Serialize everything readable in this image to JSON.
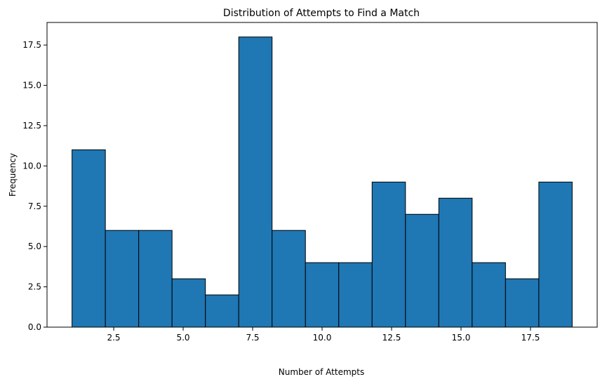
{
  "chart_data": {
    "type": "bar",
    "title": "Distribution of Attempts to Find a Match",
    "xlabel": "Number of Attempts",
    "ylabel": "Frequency",
    "xlim": [
      0.1,
      19.9
    ],
    "ylim": [
      0,
      18.9
    ],
    "x_ticks": [
      "2.5",
      "5.0",
      "7.5",
      "10.0",
      "12.5",
      "15.0",
      "17.5"
    ],
    "y_ticks": [
      "0.0",
      "2.5",
      "5.0",
      "7.5",
      "10.0",
      "12.5",
      "15.0",
      "17.5"
    ],
    "bins": [
      {
        "start": 1.0,
        "end": 2.2,
        "value": 11
      },
      {
        "start": 2.2,
        "end": 3.4,
        "value": 6
      },
      {
        "start": 3.4,
        "end": 4.6,
        "value": 6
      },
      {
        "start": 4.6,
        "end": 5.8,
        "value": 3
      },
      {
        "start": 5.8,
        "end": 7.0,
        "value": 2
      },
      {
        "start": 7.0,
        "end": 8.2,
        "value": 18
      },
      {
        "start": 8.2,
        "end": 9.4,
        "value": 6
      },
      {
        "start": 9.4,
        "end": 10.6,
        "value": 4
      },
      {
        "start": 10.6,
        "end": 11.8,
        "value": 4
      },
      {
        "start": 11.8,
        "end": 13.0,
        "value": 9
      },
      {
        "start": 13.0,
        "end": 14.2,
        "value": 7
      },
      {
        "start": 14.2,
        "end": 15.4,
        "value": 8
      },
      {
        "start": 15.4,
        "end": 16.6,
        "value": 4
      },
      {
        "start": 16.6,
        "end": 17.8,
        "value": 3
      },
      {
        "start": 17.8,
        "end": 19.0,
        "value": 9
      }
    ],
    "bar_color": "#1f77b4",
    "edge_color": "#000000",
    "grid": false,
    "legend": false
  }
}
